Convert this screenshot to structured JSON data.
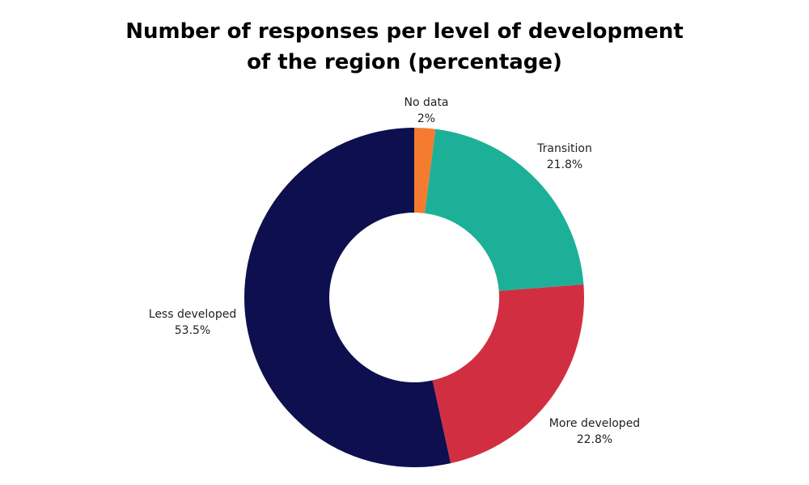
{
  "chart_data": {
    "type": "pie",
    "variant": "donut",
    "title_lines": [
      "Number of responses per level of development",
      "of the region (percentage)"
    ],
    "slices": [
      {
        "name": "No data",
        "label": "2%",
        "value": 2.0,
        "color": "#F47B30"
      },
      {
        "name": "Transition",
        "label": "21.8%",
        "value": 21.8,
        "color": "#1DB098"
      },
      {
        "name": "More developed",
        "label": "22.8%",
        "value": 22.8,
        "color": "#D12F41"
      },
      {
        "name": "Less developed",
        "label": "53.5%",
        "value": 53.5,
        "color": "#0D0F4E"
      }
    ],
    "legend": "none"
  }
}
